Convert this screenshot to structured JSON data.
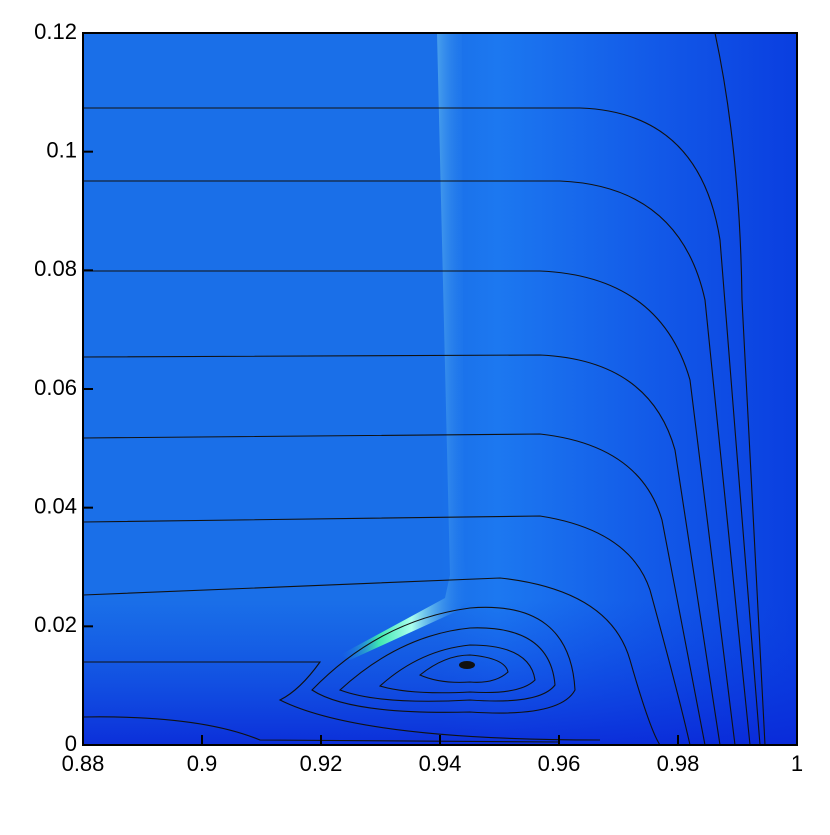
{
  "chart_data": {
    "type": "contour",
    "xlim": [
      0.88,
      1
    ],
    "xticks": [
      0.88,
      0.9,
      0.92,
      0.94,
      0.96,
      0.98,
      1
    ],
    "ylim": [
      0,
      0.12
    ],
    "yticks": [
      0,
      0.02,
      0.04,
      0.06,
      0.08,
      0.1,
      0.12
    ]
  }
}
